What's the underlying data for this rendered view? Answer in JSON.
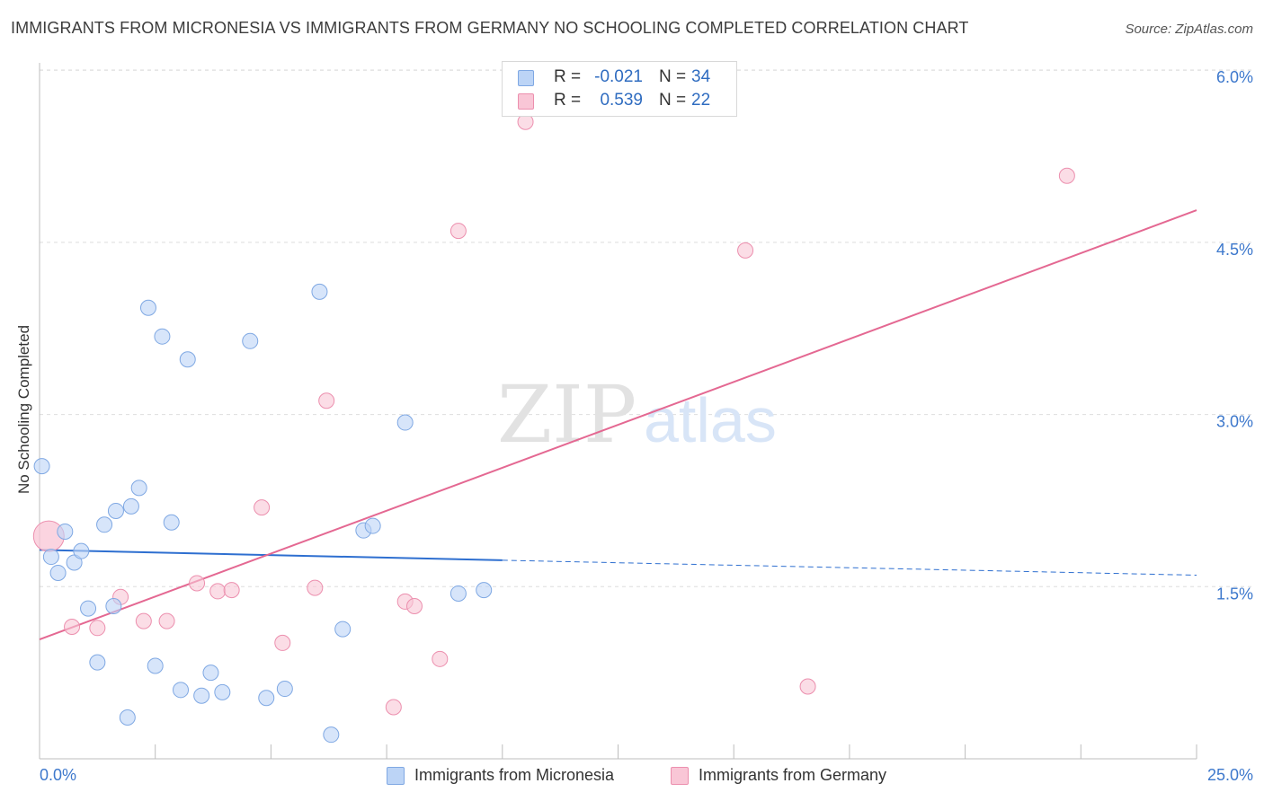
{
  "header": {
    "title": "IMMIGRANTS FROM MICRONESIA VS IMMIGRANTS FROM GERMANY NO SCHOOLING COMPLETED CORRELATION CHART",
    "source": "Source: ZipAtlas.com"
  },
  "stats": {
    "micronesia": {
      "r_label": "R =",
      "r_value": "-0.021",
      "n_label": "N =",
      "n_value": "34"
    },
    "germany": {
      "r_label": "R =",
      "r_value": "0.539",
      "n_label": "N =",
      "n_value": "22"
    }
  },
  "legend": {
    "micronesia": "Immigrants from Micronesia",
    "germany": "Immigrants from Germany"
  },
  "watermark": {
    "zip": "ZIP",
    "atlas": "atlas"
  },
  "colors": {
    "micronesia_fill": "#bcd4f6",
    "micronesia_stroke": "#7fa8e3",
    "micronesia_line": "#2e6fd0",
    "germany_fill": "#f9c6d6",
    "germany_stroke": "#ec8fae",
    "germany_line": "#e46892",
    "tick_label": "#3d78cc"
  },
  "chart_data": {
    "type": "scatter",
    "title": "IMMIGRANTS FROM MICRONESIA VS IMMIGRANTS FROM GERMANY NO SCHOOLING COMPLETED CORRELATION CHART",
    "xlabel": "",
    "ylabel": "No Schooling Completed",
    "xlim": [
      0,
      25
    ],
    "ylim": [
      0,
      6.15
    ],
    "x_tick_labels": [
      "0.0%",
      "25.0%"
    ],
    "y_ticks": [
      1.5,
      3.0,
      4.5,
      6.0
    ],
    "y_tick_labels": [
      "1.5%",
      "3.0%",
      "4.5%",
      "6.0%"
    ],
    "grid": true,
    "legend_position": "bottom",
    "series": [
      {
        "name": "Immigrants from Micronesia",
        "r": -0.021,
        "n": 34,
        "trend": {
          "x0": 0,
          "y0": 1.82,
          "x1": 10.0,
          "y1": 1.73,
          "dashed_to_x": 25,
          "dashed_to_y": 1.6
        },
        "points": [
          {
            "x": 0.05,
            "y": 2.55,
            "big": false
          },
          {
            "x": 0.25,
            "y": 1.76,
            "big": false
          },
          {
            "x": 0.4,
            "y": 1.62,
            "big": false
          },
          {
            "x": 0.55,
            "y": 1.98,
            "big": false
          },
          {
            "x": 0.75,
            "y": 1.71,
            "big": false
          },
          {
            "x": 0.9,
            "y": 1.81,
            "big": false
          },
          {
            "x": 1.05,
            "y": 1.31,
            "big": false
          },
          {
            "x": 1.25,
            "y": 0.84,
            "big": false
          },
          {
            "x": 1.4,
            "y": 2.04,
            "big": false
          },
          {
            "x": 1.6,
            "y": 1.33,
            "big": false
          },
          {
            "x": 1.65,
            "y": 2.16,
            "big": false
          },
          {
            "x": 1.9,
            "y": 0.36,
            "big": false
          },
          {
            "x": 1.98,
            "y": 2.2,
            "big": false
          },
          {
            "x": 2.15,
            "y": 2.36,
            "big": false
          },
          {
            "x": 2.35,
            "y": 3.93,
            "big": false
          },
          {
            "x": 2.5,
            "y": 0.81,
            "big": false
          },
          {
            "x": 2.65,
            "y": 3.68,
            "big": false
          },
          {
            "x": 2.85,
            "y": 2.06,
            "big": false
          },
          {
            "x": 3.05,
            "y": 0.6,
            "big": false
          },
          {
            "x": 3.2,
            "y": 3.48,
            "big": false
          },
          {
            "x": 3.5,
            "y": 0.55,
            "big": false
          },
          {
            "x": 3.7,
            "y": 0.75,
            "big": false
          },
          {
            "x": 3.95,
            "y": 0.58,
            "big": false
          },
          {
            "x": 4.55,
            "y": 3.64,
            "big": false
          },
          {
            "x": 4.9,
            "y": 0.53,
            "big": false
          },
          {
            "x": 5.3,
            "y": 0.61,
            "big": false
          },
          {
            "x": 6.05,
            "y": 4.07,
            "big": false
          },
          {
            "x": 6.3,
            "y": 0.21,
            "big": false
          },
          {
            "x": 6.55,
            "y": 1.13,
            "big": false
          },
          {
            "x": 7.0,
            "y": 1.99,
            "big": false
          },
          {
            "x": 7.2,
            "y": 2.03,
            "big": false
          },
          {
            "x": 7.9,
            "y": 2.93,
            "big": false
          },
          {
            "x": 9.05,
            "y": 1.44,
            "big": false
          },
          {
            "x": 9.6,
            "y": 1.47,
            "big": false
          }
        ]
      },
      {
        "name": "Immigrants from Germany",
        "r": 0.539,
        "n": 22,
        "trend": {
          "x0": 0,
          "y0": 1.04,
          "x1": 25,
          "y1": 4.78
        },
        "points": [
          {
            "x": 0.2,
            "y": 1.94,
            "big": true
          },
          {
            "x": 0.7,
            "y": 1.15,
            "big": false
          },
          {
            "x": 1.25,
            "y": 1.14,
            "big": false
          },
          {
            "x": 1.75,
            "y": 1.41,
            "big": false
          },
          {
            "x": 2.25,
            "y": 1.2,
            "big": false
          },
          {
            "x": 2.75,
            "y": 1.2,
            "big": false
          },
          {
            "x": 3.4,
            "y": 1.53,
            "big": false
          },
          {
            "x": 3.85,
            "y": 1.46,
            "big": false
          },
          {
            "x": 4.15,
            "y": 1.47,
            "big": false
          },
          {
            "x": 4.8,
            "y": 2.19,
            "big": false
          },
          {
            "x": 5.25,
            "y": 1.01,
            "big": false
          },
          {
            "x": 5.95,
            "y": 1.49,
            "big": false
          },
          {
            "x": 6.2,
            "y": 3.12,
            "big": false
          },
          {
            "x": 7.65,
            "y": 0.45,
            "big": false
          },
          {
            "x": 7.9,
            "y": 1.37,
            "big": false
          },
          {
            "x": 8.1,
            "y": 1.33,
            "big": false
          },
          {
            "x": 8.65,
            "y": 0.87,
            "big": false
          },
          {
            "x": 9.05,
            "y": 4.6,
            "big": false
          },
          {
            "x": 10.5,
            "y": 5.55,
            "big": false
          },
          {
            "x": 15.25,
            "y": 4.43,
            "big": false
          },
          {
            "x": 16.6,
            "y": 0.63,
            "big": false
          },
          {
            "x": 22.2,
            "y": 5.08,
            "big": false
          }
        ]
      }
    ]
  }
}
